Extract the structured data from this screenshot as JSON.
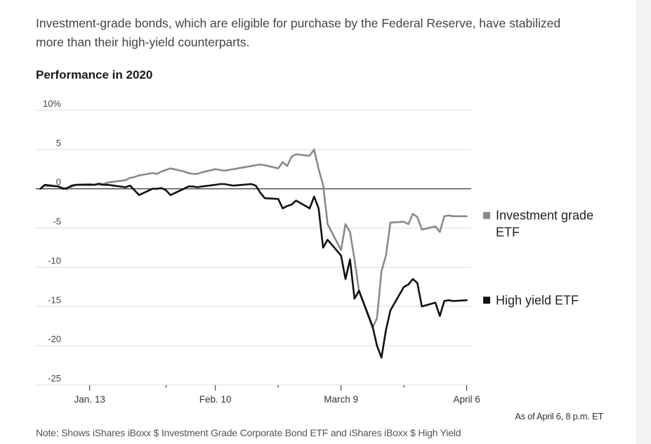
{
  "intro_text": "Investment-grade bonds, which are eligible for purchase by the Federal Reserve, have stabilized more than their high-yield counterparts.",
  "chart_title": "Performance in 2020",
  "as_of": "As of April 6, 8 p.m. ET",
  "note": "Note: Shows iShares iBoxx $ Investment Grade Corporate Bond ETF and iShares iBoxx $ High Yield",
  "chart_data": {
    "type": "line",
    "title": "Performance in 2020",
    "xlabel": "",
    "ylabel": "",
    "ylim": [
      -25,
      10
    ],
    "y_ticks": [
      10,
      5,
      0,
      -5,
      -10,
      -15,
      -20,
      -25
    ],
    "y_tick_labels": [
      "10%",
      "5",
      "0",
      "-5",
      "-10",
      "-15",
      "-20",
      "-25"
    ],
    "x_tick_labels": [
      "Jan. 13",
      "Feb. 10",
      "March 9",
      "April 6"
    ],
    "x_domain": [
      "2020-01-01",
      "2020-04-07"
    ],
    "grid": true,
    "colors": {
      "investment_grade": "#8a8a8a",
      "high_yield": "#111111",
      "grid": "#dddddd",
      "zero_line": "#333333"
    },
    "series": [
      {
        "name": "Investment grade ETF",
        "x": [
          "2020-01-02",
          "2020-01-03",
          "2020-01-06",
          "2020-01-07",
          "2020-01-08",
          "2020-01-09",
          "2020-01-10",
          "2020-01-13",
          "2020-01-14",
          "2020-01-15",
          "2020-01-16",
          "2020-01-17",
          "2020-01-21",
          "2020-01-22",
          "2020-01-23",
          "2020-01-24",
          "2020-01-27",
          "2020-01-28",
          "2020-01-29",
          "2020-01-30",
          "2020-01-31",
          "2020-02-03",
          "2020-02-04",
          "2020-02-05",
          "2020-02-06",
          "2020-02-07",
          "2020-02-10",
          "2020-02-11",
          "2020-02-12",
          "2020-02-13",
          "2020-02-14",
          "2020-02-18",
          "2020-02-19",
          "2020-02-20",
          "2020-02-21",
          "2020-02-24",
          "2020-02-25",
          "2020-02-26",
          "2020-02-27",
          "2020-02-28",
          "2020-03-02",
          "2020-03-03",
          "2020-03-04",
          "2020-03-05",
          "2020-03-06",
          "2020-03-09",
          "2020-03-10",
          "2020-03-11",
          "2020-03-12",
          "2020-03-13",
          "2020-03-16",
          "2020-03-17",
          "2020-03-18",
          "2020-03-19",
          "2020-03-20",
          "2020-03-23",
          "2020-03-24",
          "2020-03-25",
          "2020-03-26",
          "2020-03-27",
          "2020-03-30",
          "2020-03-31",
          "2020-04-01",
          "2020-04-02",
          "2020-04-03",
          "2020-04-06"
        ],
        "values": [
          0.0,
          0.4,
          0.3,
          0.1,
          -0.1,
          0.3,
          0.5,
          0.6,
          0.5,
          0.7,
          0.6,
          0.8,
          1.1,
          1.4,
          1.5,
          1.7,
          2.0,
          1.9,
          2.2,
          2.4,
          2.6,
          2.2,
          2.0,
          1.9,
          1.9,
          2.1,
          2.5,
          2.4,
          2.3,
          2.4,
          2.5,
          2.9,
          3.0,
          3.1,
          3.0,
          2.6,
          3.4,
          2.9,
          4.1,
          4.4,
          4.2,
          5.0,
          2.5,
          0.5,
          -4.5,
          -7.8,
          -4.5,
          -5.5,
          -9.0,
          -13.0,
          -17.7,
          -16.5,
          -10.5,
          -8.5,
          -4.3,
          -4.2,
          -4.5,
          -3.2,
          -3.6,
          -5.2,
          -4.8,
          -5.5,
          -3.5,
          -3.4,
          -3.5,
          -3.5
        ]
      },
      {
        "name": "High yield ETF",
        "x": [
          "2020-01-02",
          "2020-01-03",
          "2020-01-06",
          "2020-01-07",
          "2020-01-08",
          "2020-01-09",
          "2020-01-10",
          "2020-01-13",
          "2020-01-14",
          "2020-01-15",
          "2020-01-16",
          "2020-01-17",
          "2020-01-21",
          "2020-01-22",
          "2020-01-23",
          "2020-01-24",
          "2020-01-27",
          "2020-01-28",
          "2020-01-29",
          "2020-01-30",
          "2020-01-31",
          "2020-02-03",
          "2020-02-04",
          "2020-02-05",
          "2020-02-06",
          "2020-02-07",
          "2020-02-10",
          "2020-02-11",
          "2020-02-12",
          "2020-02-13",
          "2020-02-14",
          "2020-02-18",
          "2020-02-19",
          "2020-02-20",
          "2020-02-21",
          "2020-02-24",
          "2020-02-25",
          "2020-02-26",
          "2020-02-27",
          "2020-02-28",
          "2020-03-02",
          "2020-03-03",
          "2020-03-04",
          "2020-03-05",
          "2020-03-06",
          "2020-03-09",
          "2020-03-10",
          "2020-03-11",
          "2020-03-12",
          "2020-03-13",
          "2020-03-16",
          "2020-03-17",
          "2020-03-18",
          "2020-03-19",
          "2020-03-20",
          "2020-03-23",
          "2020-03-24",
          "2020-03-25",
          "2020-03-26",
          "2020-03-27",
          "2020-03-30",
          "2020-03-31",
          "2020-04-01",
          "2020-04-02",
          "2020-04-03",
          "2020-04-06"
        ],
        "values": [
          0.0,
          0.5,
          0.3,
          0.0,
          0.1,
          0.4,
          0.5,
          0.5,
          0.5,
          0.6,
          0.5,
          0.5,
          0.2,
          0.4,
          -0.2,
          -0.8,
          0.0,
          0.0,
          0.1,
          -0.2,
          -0.8,
          0.0,
          0.3,
          0.3,
          0.2,
          0.3,
          0.5,
          0.6,
          0.6,
          0.5,
          0.4,
          0.6,
          0.4,
          -0.5,
          -1.2,
          -1.3,
          -2.5,
          -2.2,
          -2.0,
          -1.5,
          -2.5,
          -1.0,
          -2.5,
          -7.5,
          -6.5,
          -8.5,
          -11.5,
          -9.0,
          -14.0,
          -13.0,
          -17.5,
          -20.0,
          -21.5,
          -18.0,
          -15.5,
          -12.5,
          -12.2,
          -11.5,
          -12.0,
          -15.0,
          -14.5,
          -16.2,
          -14.3,
          -14.2,
          -14.3,
          -14.2
        ]
      }
    ]
  }
}
